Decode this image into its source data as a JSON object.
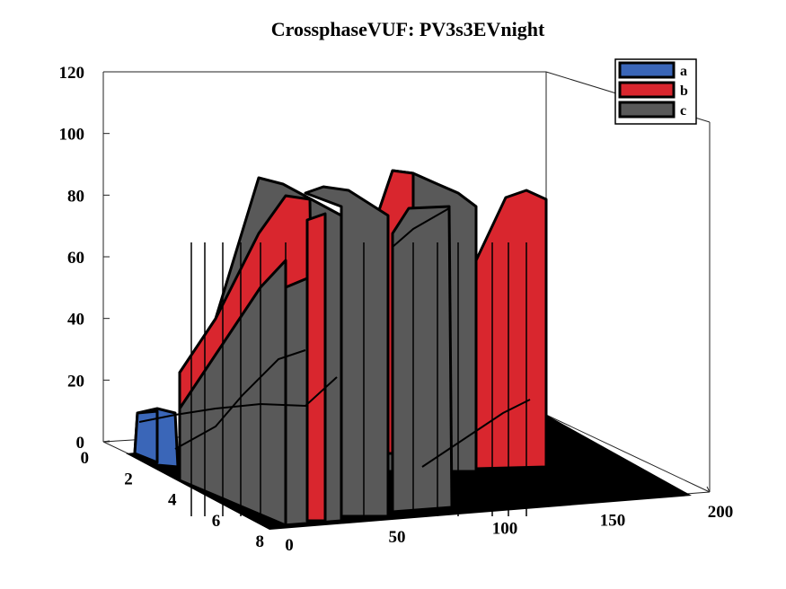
{
  "chart_data": {
    "type": "3d-ribbon",
    "title": "CrossphaseVUF: PV3s3EVnight",
    "xlabel": "",
    "ylabel": "",
    "zlabel": "",
    "x_ticks": [
      "0",
      "50",
      "100",
      "150",
      "200"
    ],
    "y_ticks": [
      "0",
      "2",
      "4",
      "6",
      "8"
    ],
    "z_ticks": [
      "0",
      "20",
      "40",
      "60",
      "80",
      "100",
      "120"
    ],
    "xlim": [
      0,
      200
    ],
    "ylim": [
      0,
      8
    ],
    "zlim": [
      0,
      120
    ],
    "grid": false,
    "legend_position": "top-right",
    "series": [
      {
        "name": "a",
        "color": "#3a66b8"
      },
      {
        "name": "b",
        "color": "#d9262e"
      },
      {
        "name": "c",
        "color": "#595959"
      }
    ]
  }
}
